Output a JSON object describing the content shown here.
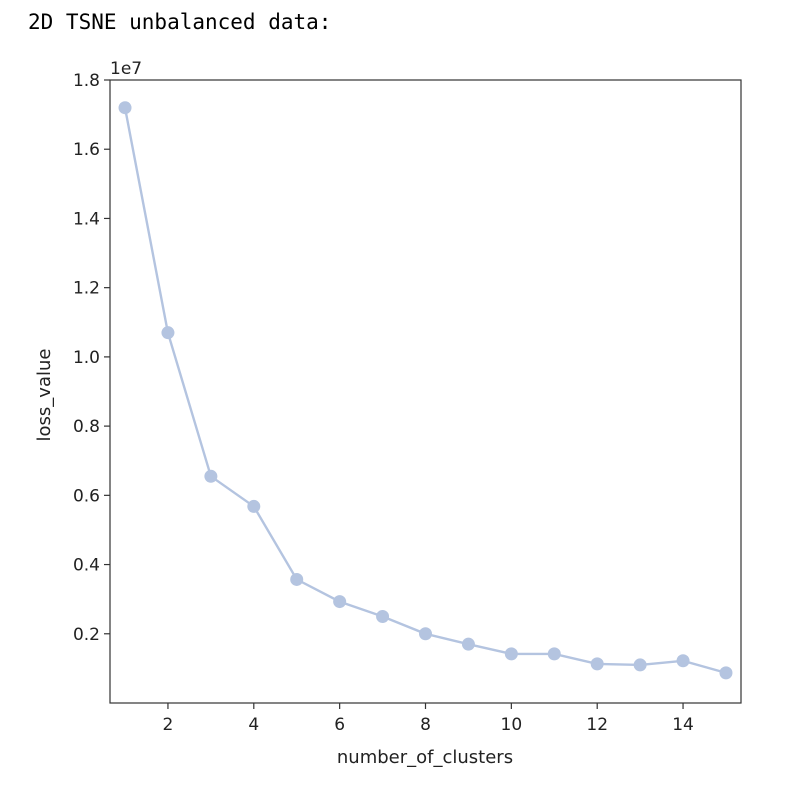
{
  "output_title": "2D TSNE unbalanced data:",
  "colors": {
    "series": "#b4c4e0",
    "axes": "#333333",
    "text": "#222222"
  },
  "chart_data": {
    "type": "line",
    "title": "",
    "xlabel": "number_of_clusters",
    "ylabel": "loss_value",
    "y_offset_label": "1e7",
    "xlim": [
      0.65,
      15.35
    ],
    "ylim": [
      0.0,
      1.8
    ],
    "xticks": [
      2,
      4,
      6,
      8,
      10,
      12,
      14
    ],
    "yticks": [
      0.2,
      0.4,
      0.6,
      0.8,
      1.0,
      1.2,
      1.4,
      1.6,
      1.8
    ],
    "grid": false,
    "marker": "circle",
    "series": [
      {
        "x": [
          1,
          2,
          3,
          4,
          5,
          6,
          7,
          8,
          9,
          10,
          11,
          12,
          13,
          14,
          15
        ],
        "y": [
          1.72,
          1.07,
          0.655,
          0.568,
          0.357,
          0.293,
          0.25,
          0.2,
          0.17,
          0.142,
          0.142,
          0.113,
          0.11,
          0.122,
          0.087
        ]
      }
    ]
  }
}
